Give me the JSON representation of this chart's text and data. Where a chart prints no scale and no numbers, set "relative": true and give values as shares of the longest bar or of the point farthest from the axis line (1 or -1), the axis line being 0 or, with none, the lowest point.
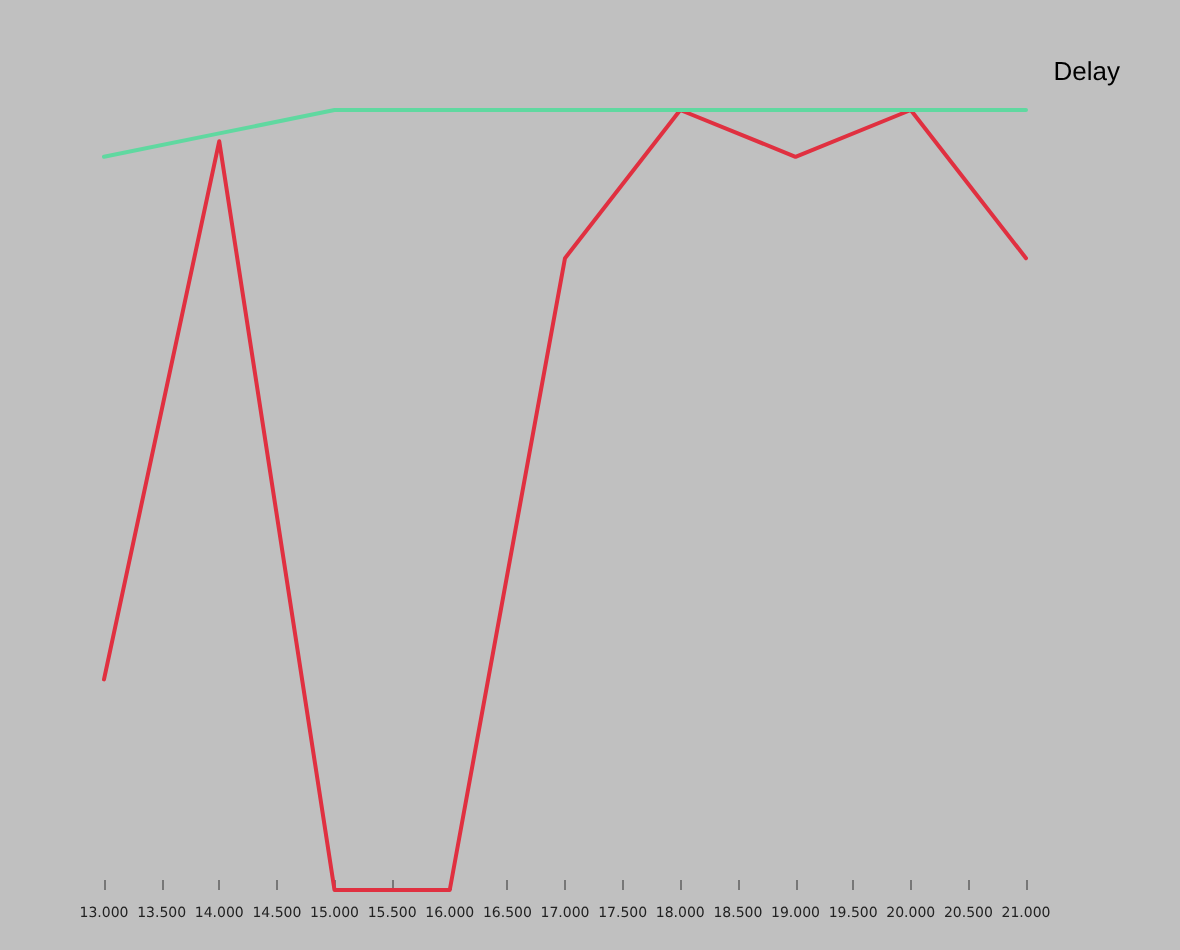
{
  "chart_data": {
    "type": "line",
    "title": "Delay",
    "relative": true,
    "marker": "none",
    "grid": false,
    "x": [
      13,
      14,
      15,
      16,
      17,
      18,
      19,
      20,
      21
    ],
    "xlim": [
      13,
      21
    ],
    "xticks": [
      {
        "value": 13,
        "label": "13.000"
      },
      {
        "value": 13.5,
        "label": "13.500"
      },
      {
        "value": 14,
        "label": "14.000"
      },
      {
        "value": 14.5,
        "label": "14.500"
      },
      {
        "value": 15,
        "label": "15.000"
      },
      {
        "value": 15.5,
        "label": "15.500"
      },
      {
        "value": 16,
        "label": "16.000"
      },
      {
        "value": 16.5,
        "label": "16.500"
      },
      {
        "value": 17,
        "label": "17.000"
      },
      {
        "value": 17.5,
        "label": "17.500"
      },
      {
        "value": 18,
        "label": "18.000"
      },
      {
        "value": 18.5,
        "label": "18.500"
      },
      {
        "value": 19,
        "label": "19.000"
      },
      {
        "value": 19.5,
        "label": "19.500"
      },
      {
        "value": 20,
        "label": "20.000"
      },
      {
        "value": 20.5,
        "label": "20.500"
      },
      {
        "value": 21,
        "label": "21.000"
      }
    ],
    "series": [
      {
        "color": "#e03040",
        "values": [
          0.27,
          0.96,
          0,
          0,
          0.81,
          1,
          0.94,
          1,
          0.81
        ]
      },
      {
        "color": "#60d8a0",
        "values": [
          0.94,
          0.97,
          1,
          1,
          1,
          1,
          1,
          1,
          1
        ]
      }
    ]
  }
}
